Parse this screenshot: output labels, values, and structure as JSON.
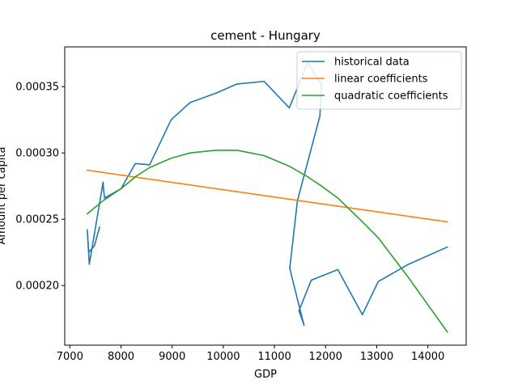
{
  "chart_data": {
    "type": "line",
    "title": "cement - Hungary",
    "xlabel": "GDP",
    "ylabel": "Amount per capita",
    "xlim": [
      6900,
      14750
    ],
    "ylim": [
      0.000155,
      0.00038
    ],
    "xticks": [
      7000,
      8000,
      9000,
      10000,
      11000,
      12000,
      13000,
      14000
    ],
    "xtick_labels": [
      "7000",
      "8000",
      "9000",
      "10000",
      "11000",
      "12000",
      "13000",
      "14000"
    ],
    "yticks": [
      0.0002,
      0.00025,
      0.0003,
      0.00035
    ],
    "ytick_labels": [
      "0.00020",
      "0.00025",
      "0.00030",
      "0.00035"
    ],
    "grid": false,
    "legend_position": "top-right",
    "series": [
      {
        "name": "historical data",
        "color": "#1f77b4",
        "x": [
          7580,
          7480,
          7370,
          7340,
          7380,
          7650,
          7660,
          7680,
          8000,
          8280,
          8560,
          8980,
          9350,
          9850,
          10270,
          10800,
          11290,
          11650,
          11920,
          11890,
          11450,
          11300,
          11460,
          11580,
          11480,
          11720,
          12240,
          12720,
          13030,
          13620,
          14380
        ],
        "y": [
          0.000244,
          0.00023,
          0.000225,
          0.000242,
          0.000216,
          0.000278,
          0.000272,
          0.000266,
          0.000273,
          0.000292,
          0.000291,
          0.000325,
          0.000338,
          0.000345,
          0.000352,
          0.000354,
          0.000334,
          0.000368,
          0.000352,
          0.000328,
          0.000264,
          0.000213,
          0.000188,
          0.00017,
          0.000181,
          0.000204,
          0.000212,
          0.000178,
          0.000203,
          0.000216,
          0.000229
        ]
      },
      {
        "name": "linear coefficients",
        "color": "#ff7f0e",
        "x": [
          7340,
          14380
        ],
        "y": [
          0.000287,
          0.000248
        ]
      },
      {
        "name": "quadratic coefficients",
        "color": "#2ca02c",
        "x": [
          7340,
          7650,
          8000,
          8280,
          8560,
          8980,
          9350,
          9850,
          10270,
          10800,
          11290,
          11650,
          11920,
          12240,
          12720,
          13030,
          13620,
          14380
        ],
        "y": [
          0.000254,
          0.000264,
          0.000273,
          0.000282,
          0.000289,
          0.000296,
          0.0003,
          0.000302,
          0.000302,
          0.000298,
          0.00029,
          0.000282,
          0.000275,
          0.000266,
          0.000248,
          0.000236,
          0.000206,
          0.000165
        ]
      }
    ]
  }
}
